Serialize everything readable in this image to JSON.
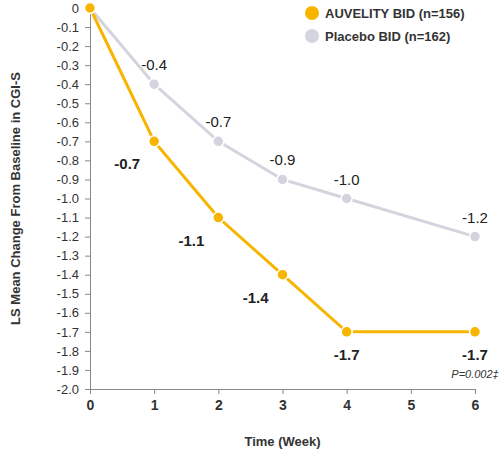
{
  "chart_data": {
    "type": "line",
    "x_label": "Time (Week)",
    "y_label": "LS Mean Change From Baseline in CGI-S",
    "x": [
      0,
      1,
      2,
      3,
      4,
      6
    ],
    "series": [
      {
        "name": "AUVELITY BID (n=156)",
        "color": "#f7b500",
        "marker": "circle",
        "values": [
          0,
          -0.7,
          -1.1,
          -1.4,
          -1.7,
          -1.7
        ],
        "value_labels": [
          null,
          "-0.7",
          "-1.1",
          "-1.4",
          "-1.7",
          "-1.7"
        ]
      },
      {
        "name": "Placebo BID (n=162)",
        "color": "#d4d4de",
        "marker": "circle",
        "values": [
          0,
          -0.4,
          -0.7,
          -0.9,
          -1.0,
          -1.2
        ],
        "value_labels": [
          null,
          "-0.4",
          "-0.7",
          "-0.9",
          "-1.0",
          "-1.2"
        ]
      }
    ],
    "annotations": [
      "P=0.002‡"
    ],
    "xlim": [
      0,
      6
    ],
    "xticks": [
      0,
      1,
      2,
      3,
      4,
      5,
      6
    ],
    "ylim": [
      -2.0,
      0
    ],
    "yticks": [
      0,
      -0.1,
      -0.2,
      -0.3,
      -0.4,
      -0.5,
      -0.6,
      -0.7,
      -0.8,
      -0.9,
      {
        "value": -1.0,
        "label": "-1.0"
      },
      -1.1,
      -1.2,
      -1.3,
      -1.4,
      -1.5,
      -1.6,
      -1.7,
      -1.8,
      -1.9,
      {
        "value": -2.0,
        "label": "-2.0"
      }
    ],
    "grid": false,
    "legend": "top-right",
    "data_labels": true
  }
}
